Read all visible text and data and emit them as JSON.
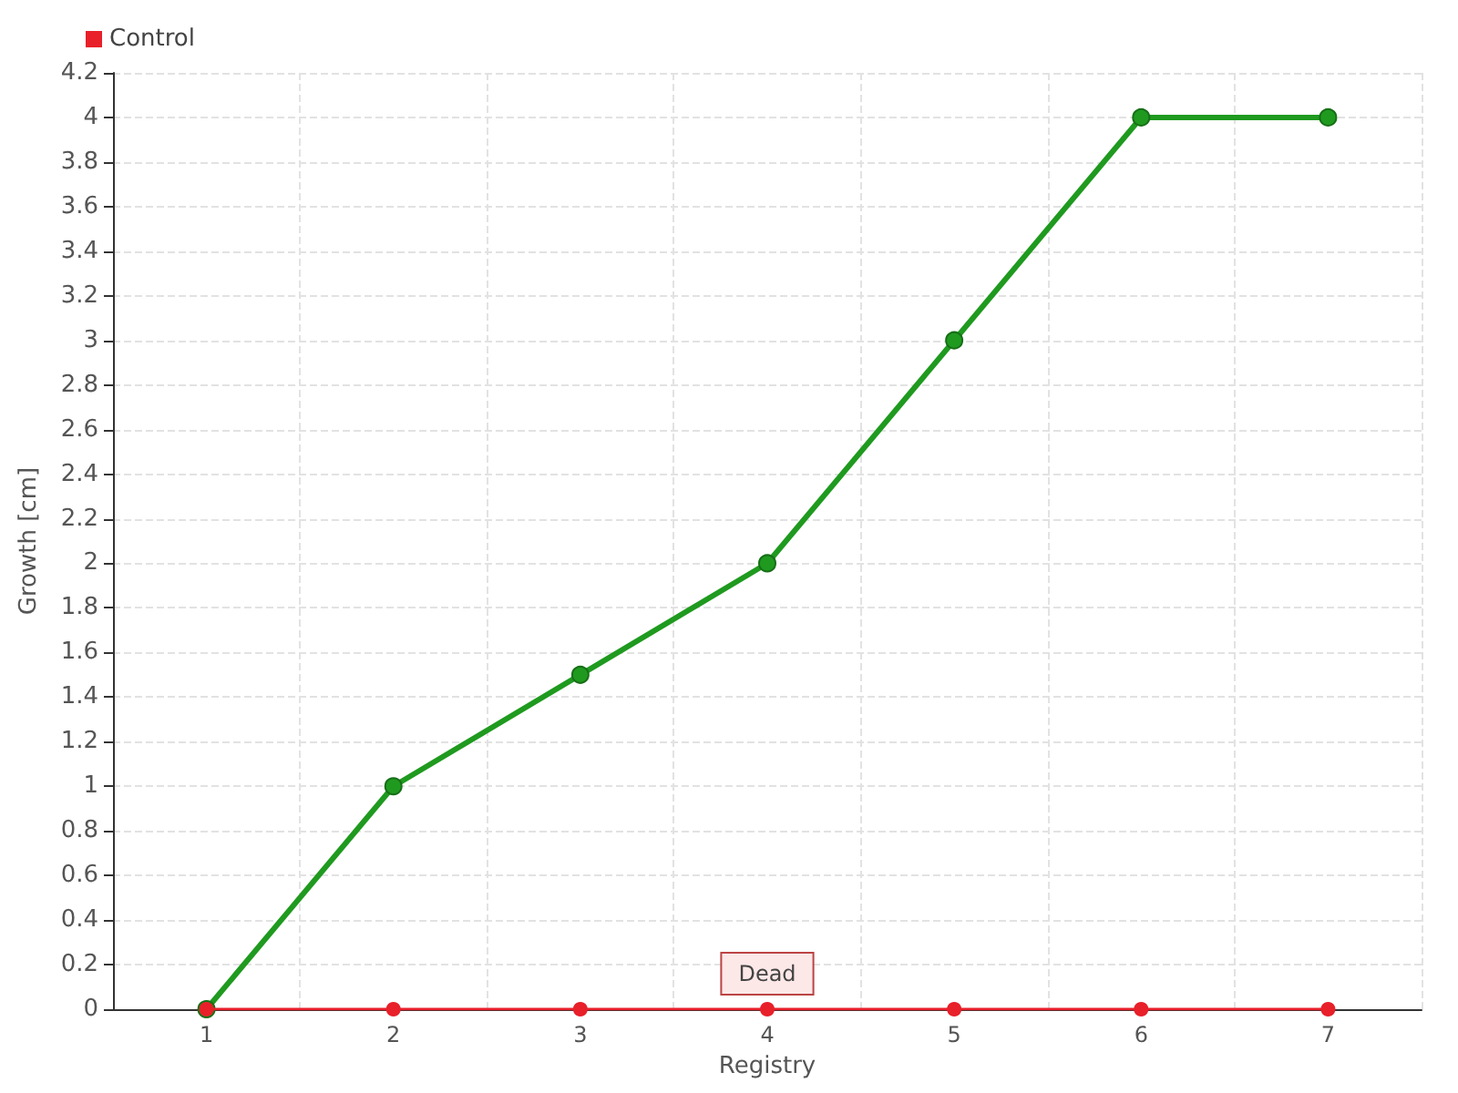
{
  "chart_data": {
    "type": "line",
    "xlabel": "Registry",
    "ylabel": "Growth [cm]",
    "categories": [
      "1",
      "2",
      "3",
      "4",
      "5",
      "6",
      "7"
    ],
    "series": [
      {
        "color": "#1f9a1f",
        "values": [
          0,
          1,
          1.5,
          2,
          3,
          4,
          4
        ]
      },
      {
        "name": "Control",
        "color": "#e8202a",
        "values": [
          0,
          0,
          0,
          0,
          0,
          0,
          0
        ]
      }
    ],
    "ylim": [
      0,
      4.2
    ],
    "yticks": [
      0,
      0.2,
      0.4,
      0.6,
      0.8,
      1,
      1.2,
      1.4,
      1.6,
      1.8,
      2,
      2.2,
      2.4,
      2.6,
      2.8,
      3,
      3.2,
      3.4,
      3.6,
      3.8,
      4,
      4.2
    ],
    "grid": true,
    "legend": "top left",
    "marker": "circle",
    "annotations": [
      {
        "text": "Dead",
        "x": "4",
        "y": 0
      }
    ]
  }
}
